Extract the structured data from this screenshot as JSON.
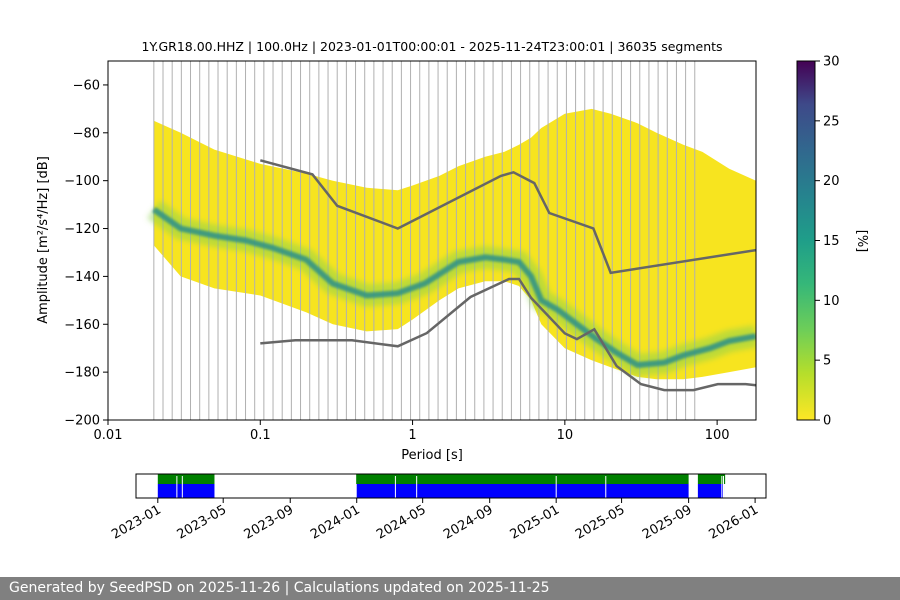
{
  "chart_data": [
    {
      "type": "heatmap",
      "title": "1Y.GR18.00.HHZ | 100.0Hz | 2023-01-01T00:00:01 - 2025-11-24T23:00:01 | 36035 segments",
      "xlabel": "Period [s]",
      "ylabel": "Amplitude [m²/s⁴/Hz] [dB]",
      "xscale": "log",
      "xlim": [
        0.01,
        180
      ],
      "ylim": [
        -200,
        -50
      ],
      "x_ticks": [
        0.01,
        0.1,
        1,
        10,
        100
      ],
      "x_tick_labels": [
        "0.01",
        "0.1",
        "1",
        "10",
        "100"
      ],
      "y_ticks": [
        -200,
        -180,
        -160,
        -140,
        -120,
        -100,
        -80,
        -60
      ],
      "y_tick_labels": [
        "−200",
        "−180",
        "−160",
        "−140",
        "−120",
        "−100",
        "−80",
        "−60"
      ],
      "grid": "vertical lines at PSD frequency bins",
      "mode_curve": {
        "name": "",
        "x": [
          0.02,
          0.03,
          0.05,
          0.08,
          0.12,
          0.2,
          0.3,
          0.5,
          0.8,
          1.2,
          2,
          3,
          4,
          5,
          6,
          7,
          9,
          12,
          16,
          22,
          30,
          45,
          60,
          90,
          120,
          180
        ],
        "y": [
          -112,
          -120,
          -123,
          -125,
          -128,
          -133,
          -143,
          -148,
          -147,
          -143,
          -134,
          -132,
          -133,
          -134,
          -140,
          -150,
          -154,
          -160,
          -166,
          -172,
          -177,
          -176,
          -173,
          -170,
          -167,
          -165
        ]
      },
      "spread_band": {
        "x": [
          0.02,
          0.03,
          0.05,
          0.1,
          0.2,
          0.3,
          0.5,
          0.8,
          1,
          1.5,
          2,
          3,
          4,
          5,
          6,
          7,
          10,
          15,
          20,
          30,
          40,
          60,
          80,
          120,
          180
        ],
        "upper": [
          -75,
          -80,
          -87,
          -93,
          -97,
          -100,
          -103,
          -104,
          -102,
          -98,
          -94,
          -90,
          -88,
          -85,
          -82,
          -78,
          -72,
          -70,
          -72,
          -76,
          -80,
          -85,
          -88,
          -95,
          -100
        ],
        "lower": [
          -127,
          -140,
          -145,
          -148,
          -155,
          -160,
          -163,
          -162,
          -158,
          -150,
          -145,
          -142,
          -142,
          -144,
          -150,
          -160,
          -170,
          -175,
          -178,
          -182,
          -183,
          -183,
          -182,
          -180,
          -178
        ]
      },
      "nhnm": {
        "name": "",
        "x": [
          0.1,
          0.22,
          0.32,
          0.8,
          3.8,
          4.6,
          6.3,
          7.9,
          15.4,
          20,
          180
        ],
        "y": [
          -91.5,
          -97.4,
          -110.5,
          -120,
          -98,
          -96.5,
          -101,
          -113.5,
          -120,
          -138.5,
          -129
        ]
      },
      "nlnm": {
        "name": "",
        "x": [
          0.1,
          0.17,
          0.4,
          0.8,
          1.24,
          2.4,
          4.3,
          5,
          6,
          10,
          12,
          15.6,
          21.9,
          31.6,
          45,
          70,
          101,
          154,
          180
        ],
        "y": [
          -168,
          -166.7,
          -166.7,
          -169.2,
          -163.7,
          -148.6,
          -141.1,
          -141.1,
          -149,
          -163.8,
          -166.2,
          -162.1,
          -177.5,
          -185,
          -187.5,
          -187.5,
          -185,
          -185,
          -185.5
        ]
      },
      "colorbar": {
        "label": "[%]",
        "range": [
          0,
          30
        ],
        "ticks": [
          "0",
          "5",
          "10",
          "15",
          "20",
          "25",
          "30"
        ]
      },
      "colors": {
        "mode_line": "#2b8f8a",
        "nhnm_line": "#666666",
        "nlnm_line": "#666666",
        "background_density": "#f7e41f"
      }
    },
    {
      "type": "bar",
      "title": "",
      "xlabel": "",
      "ylabel": "",
      "xlim": [
        "2022-11-22",
        "2026-01-21"
      ],
      "x_tick_labels": [
        "2023-01",
        "2023-05",
        "2023-09",
        "2024-01",
        "2024-05",
        "2024-09",
        "2025-01",
        "2025-05",
        "2025-09",
        "2026-01"
      ],
      "x_tick_dates": [
        "2023-01-01",
        "2023-05-01",
        "2023-09-01",
        "2024-01-01",
        "2024-05-01",
        "2024-09-01",
        "2025-01-01",
        "2025-05-01",
        "2025-09-01",
        "2026-01-01"
      ],
      "data_segments": [
        [
          "2023-01-01",
          "2023-04-15"
        ],
        [
          "2023-12-31",
          "2025-09-01"
        ],
        [
          "2025-09-18",
          "2025-11-07"
        ]
      ],
      "psd_segments": [
        [
          "2023-01-01",
          "2023-04-15"
        ],
        [
          "2024-01-01",
          "2025-09-01"
        ],
        [
          "2025-09-18",
          "2025-11-05"
        ]
      ],
      "gaps": [
        "2023-02-05",
        "2023-02-15",
        "2024-03-12",
        "2024-04-20",
        "2025-01-01",
        "2025-04-02",
        "2025-11-01",
        "2025-11-04"
      ],
      "colors": {
        "data": "#008000",
        "psd": "#0000ff"
      }
    }
  ],
  "footer": {
    "text": "Generated by SeedPSD on 2025-11-26 | Calculations updated on 2025-11-25"
  }
}
